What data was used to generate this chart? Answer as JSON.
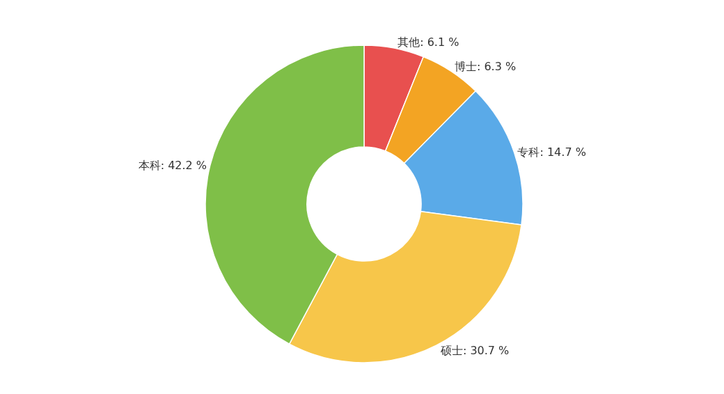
{
  "chart_data": {
    "type": "donut",
    "categories": [
      "其他",
      "博士",
      "专科",
      "硕士",
      "本科"
    ],
    "values": [
      6.1,
      6.3,
      14.7,
      30.7,
      42.2
    ],
    "value_labels": [
      "6.1 %",
      "6.3 %",
      "14.7 %",
      "30.7 %",
      "42.2 %"
    ],
    "colors": [
      "#e8504f",
      "#f3a423",
      "#5aaae8",
      "#f7c64a",
      "#7fbf48"
    ],
    "legend": false
  }
}
